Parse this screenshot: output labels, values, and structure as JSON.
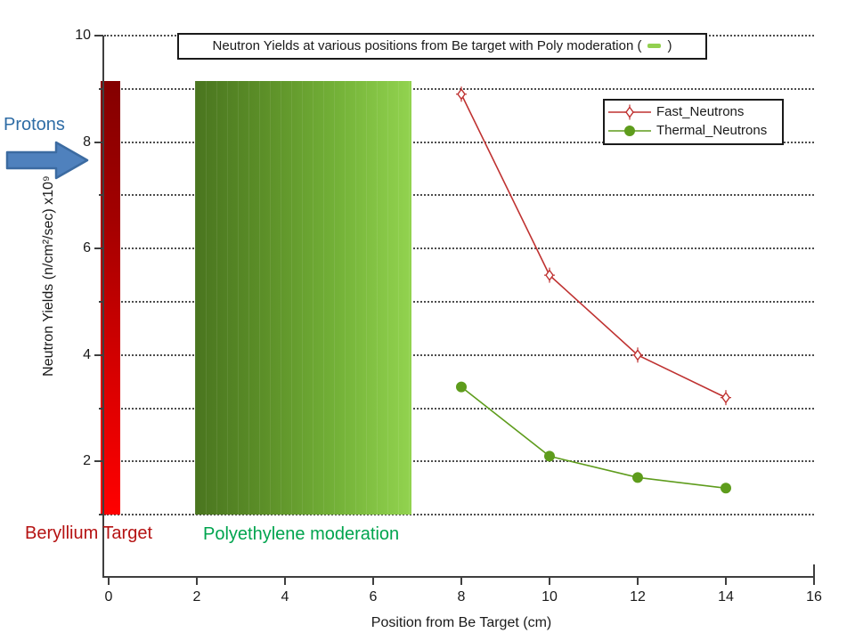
{
  "page": {
    "background": "#ffffff"
  },
  "title": {
    "prefix": "Neutron Yields at various positions from Be target with Poly moderation (",
    "suffix": ")",
    "swatch_color": "#92d050"
  },
  "legend": {
    "items": [
      {
        "label": "Fast_Neutrons",
        "color": "#bf3231",
        "marker": "open-diamond-cross"
      },
      {
        "label": "Thermal_Neutrons",
        "color": "#5e9c1c",
        "marker": "filled-circle"
      }
    ]
  },
  "axes": {
    "x": {
      "label": "Position from Be Target (cm)",
      "ticks": [
        0,
        2,
        4,
        6,
        8,
        10,
        12,
        14,
        16
      ],
      "range": [
        0,
        16
      ]
    },
    "y": {
      "label": "Neutron Yields (n/cm²/sec)  x10⁹",
      "major_ticks": [
        2,
        4,
        6,
        8,
        10
      ],
      "minor_ticks": [
        1,
        3,
        5,
        7,
        9
      ],
      "gridlines": [
        1,
        2,
        3,
        4,
        5,
        6,
        7,
        8,
        9,
        10
      ],
      "range": [
        0,
        10
      ]
    }
  },
  "annotations": {
    "protons": {
      "text": "Protons",
      "color": "#2e6ca5"
    },
    "beryllium": {
      "text": "Beryllium Target",
      "color": "#b51212"
    },
    "polyethylene": {
      "text": "Polyethylene moderation",
      "color": "#00a44e"
    }
  },
  "arrow": {
    "fill": "#4f81bd",
    "stroke": "#3c6ba1"
  },
  "chart_data": {
    "type": "line",
    "x": [
      8,
      10,
      12,
      14
    ],
    "series": [
      {
        "name": "Fast_Neutrons",
        "color": "#bf3231",
        "marker": "open-diamond-cross",
        "values": [
          8.9,
          5.5,
          4.0,
          3.2
        ]
      },
      {
        "name": "Thermal_Neutrons",
        "color": "#5e9c1c",
        "marker": "filled-circle",
        "values": [
          3.4,
          2.1,
          1.7,
          1.5
        ]
      }
    ],
    "regions": [
      {
        "name": "beryllium-target-bar",
        "label": "Beryllium Target",
        "x_range": [
          -0.18,
          0.27
        ],
        "y_range": [
          1.0,
          9.15
        ],
        "colors": [
          "#8b0000",
          "#ff0000"
        ],
        "gradient_direction": "top-to-bottom"
      },
      {
        "name": "polyethylene-region",
        "label": "Polyethylene moderation",
        "x_range": [
          1.95,
          6.87
        ],
        "y_range": [
          1.0,
          9.15
        ],
        "colors": [
          "#4a751f",
          "#92d34f"
        ],
        "gradient_direction": "left-to-right"
      }
    ],
    "title": "Neutron Yields at various positions from Be target with Poly moderation",
    "xlabel": "Position from Be Target (cm)",
    "ylabel": "Neutron Yields (n/cm²/sec) x10⁹",
    "xlim": [
      0,
      16
    ],
    "ylim": [
      0,
      10
    ],
    "grid": "horizontal-dotted",
    "legend_position": "upper-right"
  }
}
